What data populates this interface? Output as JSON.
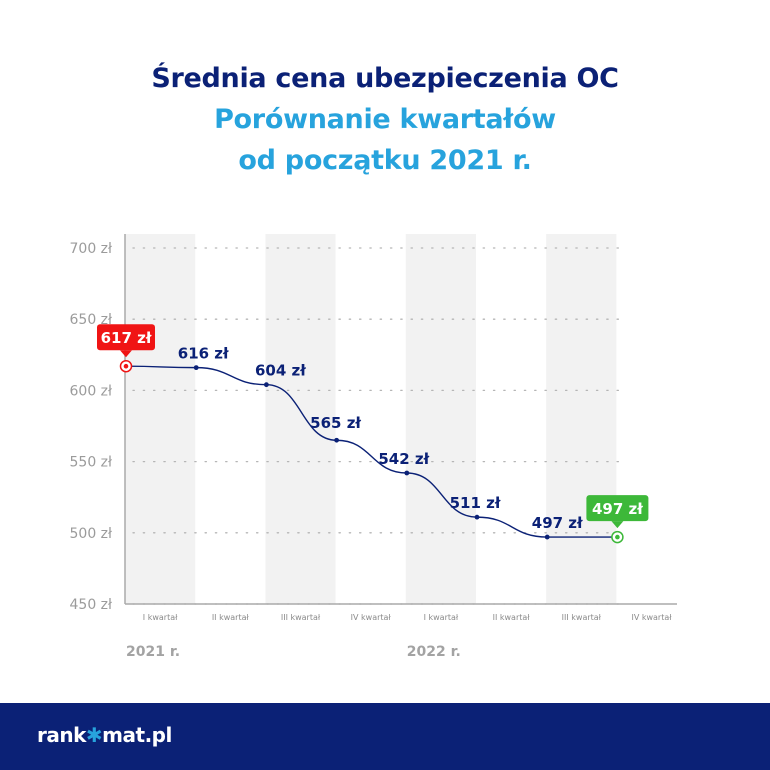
{
  "header": {
    "title": "Średnia cena ubezpieczenia OC",
    "subtitle_line1": "Porównanie kwartałów",
    "subtitle_line2": "od początku 2021 r."
  },
  "chart_data": {
    "type": "line",
    "title": "Średnia cena ubezpieczenia OC",
    "subtitle": "Porównanie kwartałów od początku 2021 r.",
    "categories": [
      "I kwartał",
      "II kwartał",
      "III kwartał",
      "IV kwartał",
      "I kwartał",
      "II kwartał",
      "III kwartał",
      "IV kwartał"
    ],
    "year_labels": [
      {
        "label": "2021 r.",
        "start_index": 0
      },
      {
        "label": "2022 r.",
        "start_index": 4
      }
    ],
    "series": [
      {
        "values": [
          617,
          616,
          604,
          565,
          542,
          511,
          497,
          497
        ],
        "labels": [
          "617 zł",
          "616 zł",
          "604 zł",
          "565 zł",
          "542 zł",
          "511 zł",
          "497 zł",
          "497 zł"
        ],
        "color": "#0b2176"
      }
    ],
    "yticks": [
      450,
      500,
      550,
      600,
      650,
      700
    ],
    "ytick_labels": [
      "450 zł",
      "500 zł",
      "550 zł",
      "600 zł",
      "650 zł",
      "700 zł"
    ],
    "ylim": [
      450,
      700
    ],
    "grid": "dotted horizontal",
    "highlight": {
      "start": {
        "index": 0,
        "label": "617 zł",
        "color": "#f01414"
      },
      "end": {
        "index": 7,
        "label": "497 zł",
        "color": "#3db839"
      }
    },
    "line_color": "#0b2176",
    "band_color": "#f2f2f2"
  },
  "brand": {
    "logo_prefix": "rank",
    "logo_star": "✱",
    "logo_suffix": "mat.pl",
    "footer_color": "#0b2176"
  }
}
